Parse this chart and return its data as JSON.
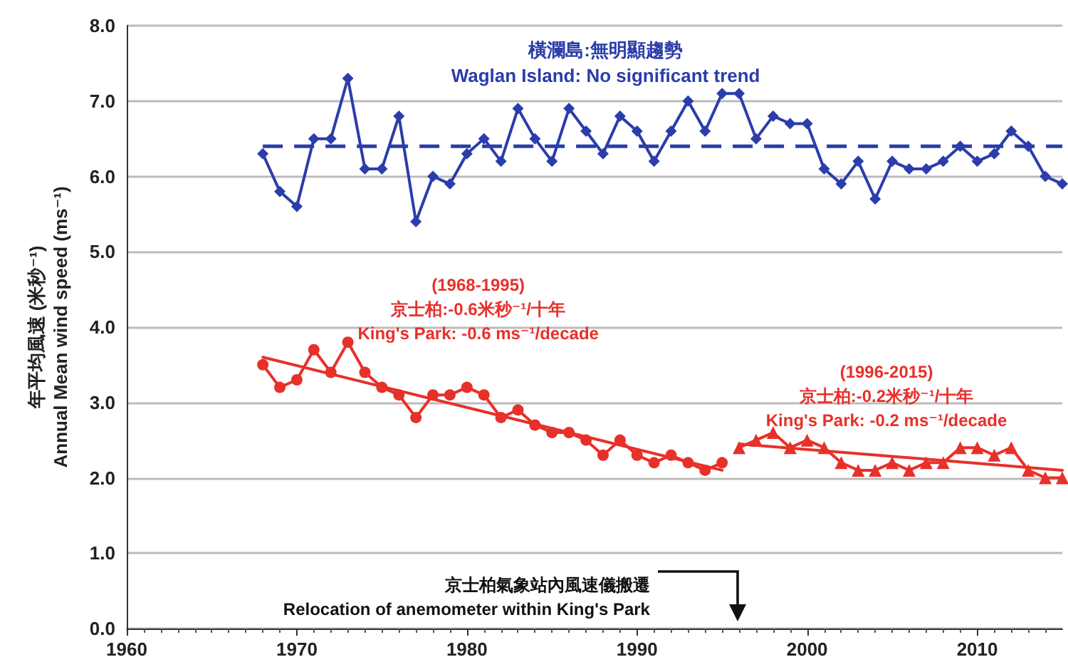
{
  "chart_data": {
    "type": "line",
    "ylabel": "年平均風速 (米秒⁻¹)\nAnnual Mean wind speed (ms⁻¹)",
    "xlim": [
      1960,
      2015
    ],
    "xticks": [
      1960,
      1970,
      1980,
      1990,
      2000,
      2010
    ],
    "ylim": [
      0,
      8
    ],
    "yticks": [
      {
        "value": 0,
        "label": "0.0"
      },
      {
        "value": 1,
        "label": "1.0"
      },
      {
        "value": 2,
        "label": "2.0"
      },
      {
        "value": 3,
        "label": "3.0"
      },
      {
        "value": 4,
        "label": "4.0"
      },
      {
        "value": 5,
        "label": "5.0"
      },
      {
        "value": 6,
        "label": "6.0"
      },
      {
        "value": 7,
        "label": "7.0"
      },
      {
        "value": 8,
        "label": "8.0"
      }
    ],
    "grid": "y",
    "legend": false,
    "line_style": "solid",
    "series": [
      {
        "color": "#2b3dab",
        "marker": "diamond",
        "x": [
          1968,
          1969,
          1970,
          1971,
          1972,
          1973,
          1974,
          1975,
          1976,
          1977,
          1978,
          1979,
          1980,
          1981,
          1982,
          1983,
          1984,
          1985,
          1986,
          1987,
          1988,
          1989,
          1990,
          1991,
          1992,
          1993,
          1994,
          1995,
          1996,
          1997,
          1998,
          1999,
          2000,
          2001,
          2002,
          2003,
          2004,
          2005,
          2006,
          2007,
          2008,
          2009,
          2010,
          2011,
          2012,
          2013,
          2014,
          2015
        ],
        "values": [
          6.3,
          5.8,
          5.6,
          6.5,
          6.5,
          7.3,
          6.1,
          6.1,
          6.8,
          5.4,
          6.0,
          5.9,
          6.3,
          6.5,
          6.2,
          6.9,
          6.5,
          6.2,
          6.9,
          6.6,
          6.3,
          6.8,
          6.6,
          6.2,
          6.6,
          7.0,
          6.6,
          7.1,
          7.1,
          6.5,
          6.8,
          6.7,
          6.7,
          6.1,
          5.9,
          6.2,
          5.7,
          6.2,
          6.1,
          6.1,
          6.2,
          6.4,
          6.2,
          6.3,
          6.6,
          6.4,
          6.0,
          5.9
        ]
      },
      {
        "color": "#e8302a",
        "marker": "circle",
        "x": [
          1968,
          1969,
          1970,
          1971,
          1972,
          1973,
          1974,
          1975,
          1976,
          1977,
          1978,
          1979,
          1980,
          1981,
          1982,
          1983,
          1984,
          1985,
          1986,
          1987,
          1988,
          1989,
          1990,
          1991,
          1992,
          1993,
          1994,
          1995
        ],
        "values": [
          3.5,
          3.2,
          3.3,
          3.7,
          3.4,
          3.8,
          3.4,
          3.2,
          3.1,
          2.8,
          3.1,
          3.1,
          3.2,
          3.1,
          2.8,
          2.9,
          2.7,
          2.6,
          2.6,
          2.5,
          2.3,
          2.5,
          2.3,
          2.2,
          2.3,
          2.2,
          2.1,
          2.2
        ]
      },
      {
        "color": "#e8302a",
        "marker": "triangle",
        "x": [
          1996,
          1997,
          1998,
          1999,
          2000,
          2001,
          2002,
          2003,
          2004,
          2005,
          2006,
          2007,
          2008,
          2009,
          2010,
          2011,
          2012,
          2013,
          2014,
          2015
        ],
        "values": [
          2.4,
          2.5,
          2.6,
          2.4,
          2.5,
          2.4,
          2.2,
          2.1,
          2.1,
          2.2,
          2.1,
          2.2,
          2.2,
          2.4,
          2.4,
          2.3,
          2.4,
          2.1,
          2.0,
          2.0
        ]
      },
      {
        "type": "line",
        "name": "(1968-1995)\n京士柏:-0.6米秒⁻¹/十年\nKing's Park: -0.6 ms⁻¹/decade",
        "color": "#e8302a",
        "marker": "none",
        "x": [
          1968,
          1995
        ],
        "values": [
          3.6,
          2.1
        ]
      },
      {
        "type": "line",
        "name": "(1996-2015)\n京士柏:-0.2米秒⁻¹/十年\nKing's Park: -0.2 ms⁻¹/decade",
        "color": "#e8302a",
        "marker": "none",
        "x": [
          1996,
          2015
        ],
        "values": [
          2.45,
          2.1
        ]
      }
    ],
    "ref_lines": [
      {
        "axis": "y",
        "value": 6.4,
        "color": "#2b3dab",
        "line_style": "dashed",
        "label": "橫瀾島:無明顯趨勢\nWaglan Island: No significant trend"
      }
    ],
    "annotations": [
      "京士柏氣象站內風速儀搬遷\nRelocation of anemometer within King's Park"
    ]
  }
}
